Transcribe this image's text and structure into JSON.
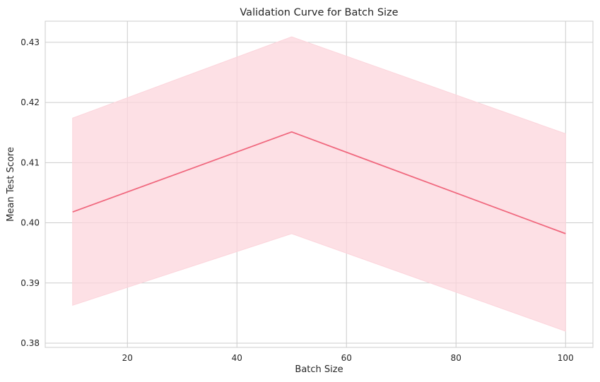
{
  "chart_data": {
    "type": "line",
    "title": "Validation Curve for Batch Size",
    "xlabel": "Batch Size",
    "ylabel": "Mean Test Score",
    "xlim": [
      5,
      105
    ],
    "ylim": [
      0.3793,
      0.4335
    ],
    "x_ticks": [
      20,
      40,
      60,
      80,
      100
    ],
    "y_ticks": [
      0.38,
      0.39,
      0.4,
      0.41,
      0.42,
      0.43
    ],
    "x_tick_labels": [
      "20",
      "40",
      "60",
      "80",
      "100"
    ],
    "y_tick_labels": [
      "0.38",
      "0.39",
      "0.40",
      "0.41",
      "0.42",
      "0.43"
    ],
    "grid": true,
    "series": [
      {
        "x": [
          10,
          50,
          100
        ],
        "values": [
          0.4018,
          0.4151,
          0.3982
        ],
        "lower": [
          0.3863,
          0.3982,
          0.382
        ],
        "upper": [
          0.4174,
          0.4309,
          0.4148
        ],
        "color": "#f0687e",
        "band_color": "#fcd5dc"
      }
    ]
  }
}
